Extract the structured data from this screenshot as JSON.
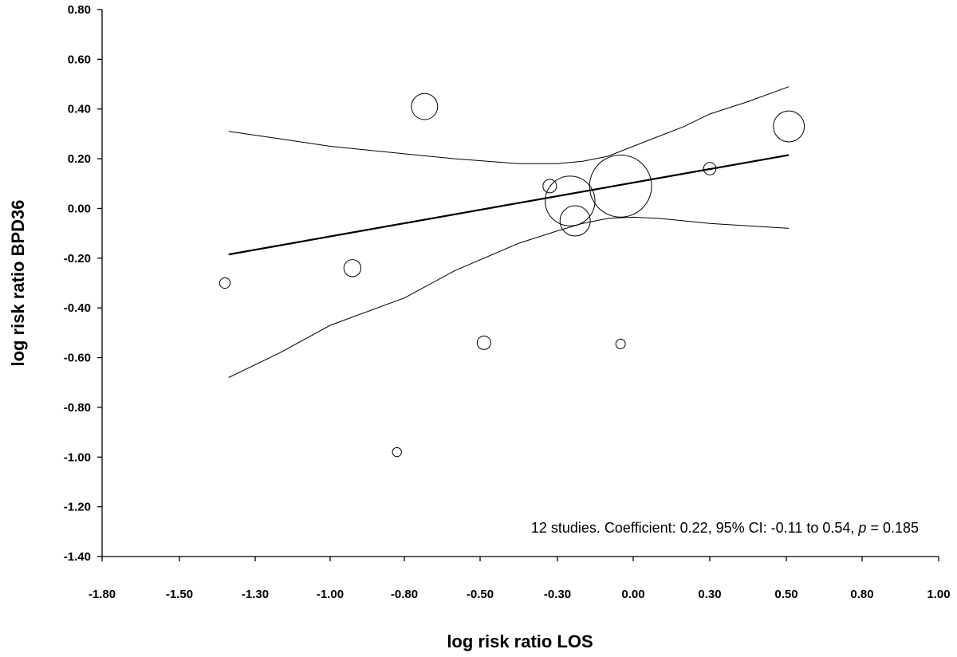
{
  "chart_data": {
    "type": "scatter",
    "subtype": "meta-regression bubble plot",
    "xlabel": "log risk ratio LOS",
    "ylabel": "log risk ratio BPD36",
    "xlim": [
      -1.8,
      1.0
    ],
    "ylim": [
      -1.4,
      0.8
    ],
    "x_ticks": [
      -1.8,
      -1.5,
      -1.3,
      -1.0,
      -0.8,
      -0.5,
      -0.3,
      0.0,
      0.3,
      0.5,
      0.8,
      1.0
    ],
    "x_tick_labels": [
      "-1.80",
      "-1.50",
      "-1.30",
      "-1.00",
      "-0.80",
      "-0.50",
      "-0.30",
      "0.00",
      "0.30",
      "0.50",
      "0.80",
      "1.00"
    ],
    "y_ticks": [
      0.8,
      0.6,
      0.4,
      0.2,
      0.0,
      -0.2,
      -0.4,
      -0.6,
      -0.8,
      -1.0,
      -1.2,
      -1.4
    ],
    "y_tick_labels": [
      "0.80",
      "0.60",
      "0.40",
      "0.20",
      "0.00",
      "-0.20",
      "-0.40",
      "-0.60",
      "-0.80",
      "-1.00",
      "-1.20",
      "-1.40"
    ],
    "points": [
      {
        "x": -1.38,
        "y": -0.3,
        "weight": 1.2
      },
      {
        "x": -0.94,
        "y": -0.24,
        "weight": 3.2
      },
      {
        "x": -0.82,
        "y": -0.98,
        "weight": 0.9
      },
      {
        "x": -0.72,
        "y": 0.41,
        "weight": 7.5
      },
      {
        "x": -0.49,
        "y": -0.54,
        "weight": 2.0
      },
      {
        "x": -0.32,
        "y": 0.09,
        "weight": 2.0
      },
      {
        "x": -0.25,
        "y": 0.03,
        "weight": 27.0
      },
      {
        "x": -0.23,
        "y": -0.05,
        "weight": 10.0
      },
      {
        "x": -0.05,
        "y": 0.09,
        "weight": 42.0
      },
      {
        "x": -0.05,
        "y": -0.545,
        "weight": 1.0
      },
      {
        "x": 0.3,
        "y": 0.16,
        "weight": 1.7
      },
      {
        "x": 0.51,
        "y": 0.33,
        "weight": 10.5
      }
    ],
    "regression": {
      "x_start": -1.37,
      "x_end": 0.51,
      "y_start": -0.185,
      "y_end": 0.215
    },
    "ci_upper": {
      "x": [
        -1.37,
        -1.2,
        -1.0,
        -0.8,
        -0.6,
        -0.4,
        -0.3,
        -0.2,
        -0.1,
        0.0,
        0.1,
        0.2,
        0.3,
        0.4,
        0.51
      ],
      "y": [
        0.31,
        0.28,
        0.25,
        0.22,
        0.2,
        0.18,
        0.18,
        0.19,
        0.21,
        0.25,
        0.29,
        0.33,
        0.38,
        0.43,
        0.49
      ]
    },
    "ci_lower": {
      "x": [
        -1.37,
        -1.2,
        -1.0,
        -0.8,
        -0.6,
        -0.4,
        -0.3,
        -0.2,
        -0.1,
        0.0,
        0.1,
        0.2,
        0.3,
        0.4,
        0.51
      ],
      "y": [
        -0.68,
        -0.58,
        -0.47,
        -0.36,
        -0.25,
        -0.14,
        -0.09,
        -0.06,
        -0.04,
        -0.035,
        -0.04,
        -0.05,
        -0.06,
        -0.07,
        -0.08
      ]
    },
    "annotation": {
      "prefix": "12 studies. Coefficient: 0.22, 95% CI: -0.11 to 0.54, ",
      "p_symbol": "p",
      "suffix": " = 0.185"
    }
  }
}
